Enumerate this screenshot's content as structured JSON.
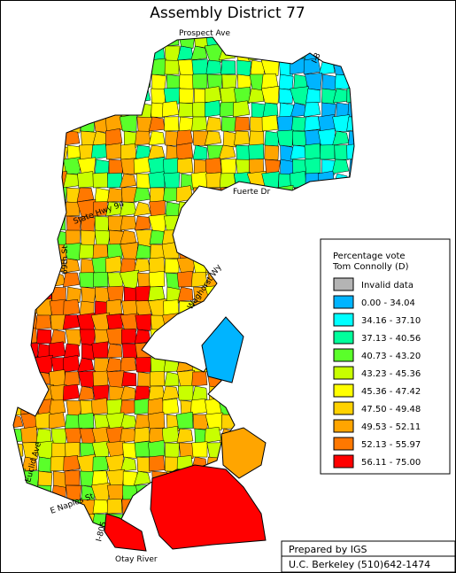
{
  "title": "Assembly District 77",
  "street_labels": [
    "Prospect Ave",
    "I-8",
    "Fuerte Dr",
    "State Hwy 94",
    "69th St",
    "Waghorst Wy",
    "Euclid Ave",
    "E Naples St",
    "I-805",
    "Otay River"
  ],
  "legend": {
    "title": [
      "Percentage vote",
      "Tom Connolly (D)"
    ],
    "items": [
      {
        "label": "Invalid data",
        "color": "#b4b4b4"
      },
      {
        "label": "0.00 - 34.04",
        "color": "#00b4ff"
      },
      {
        "label": "34.16 - 37.10",
        "color": "#00ffff"
      },
      {
        "label": "37.13 - 40.56",
        "color": "#00ff9c"
      },
      {
        "label": "40.73 - 43.20",
        "color": "#5aff2a"
      },
      {
        "label": "43.23 - 45.36",
        "color": "#c8ff00"
      },
      {
        "label": "45.36 - 47.42",
        "color": "#ffff00"
      },
      {
        "label": "47.50 - 49.48",
        "color": "#ffd200"
      },
      {
        "label": "49.53 - 52.11",
        "color": "#ffa500"
      },
      {
        "label": "52.13 - 55.97",
        "color": "#ff7800"
      },
      {
        "label": "56.11 - 75.00",
        "color": "#ff0000"
      }
    ]
  },
  "footer": [
    "Prepared by IGS",
    "U.C. Berkeley (510)642-1474"
  ]
}
